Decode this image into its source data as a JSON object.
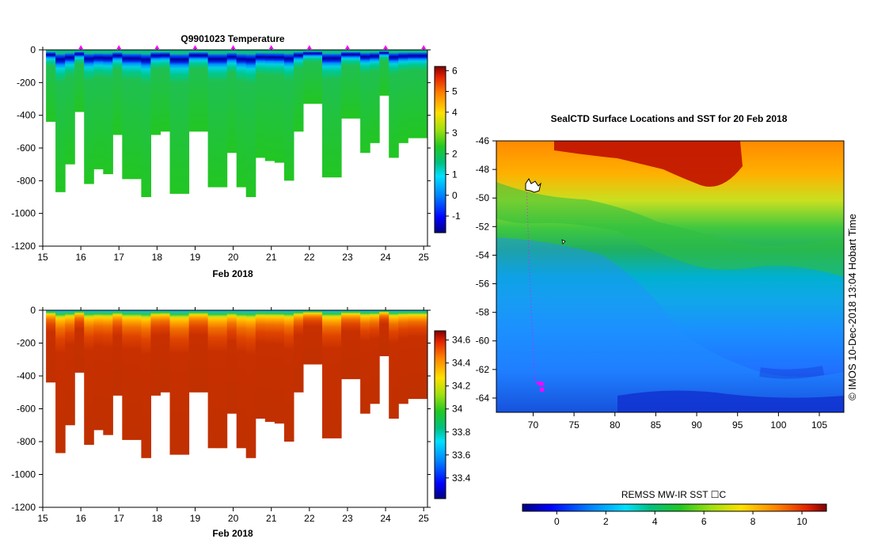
{
  "chart_data": [
    {
      "type": "heatmap",
      "title": "Q9901023  Temperature",
      "xlabel": "Feb 2018",
      "ylabel": "",
      "xlim": [
        15,
        25.1
      ],
      "ylim": [
        -1200,
        0
      ],
      "x_ticks": [
        "15",
        "16",
        "17",
        "18",
        "19",
        "20",
        "21",
        "22",
        "23",
        "24",
        "25"
      ],
      "y_ticks": [
        "0",
        "-200",
        "-400",
        "-600",
        "-800",
        "-1000",
        "-1200"
      ],
      "profile_dates": [
        15.2,
        15.45,
        15.7,
        15.95,
        16.2,
        16.45,
        16.7,
        16.95,
        17.2,
        17.45,
        17.7,
        17.95,
        18.2,
        18.45,
        18.7,
        18.95,
        19.2,
        19.45,
        19.7,
        19.95,
        20.2,
        20.45,
        20.7,
        20.95,
        21.2,
        21.45,
        21.7,
        21.95,
        22.2,
        22.45,
        22.7,
        22.95,
        23.2,
        23.45,
        23.7,
        23.95,
        24.2,
        24.45,
        24.7,
        24.95
      ],
      "profile_max_depth": [
        -440,
        -870,
        -700,
        -380,
        -820,
        -730,
        -760,
        -520,
        -790,
        -790,
        -900,
        -520,
        -500,
        -880,
        -880,
        -500,
        -500,
        -840,
        -840,
        -630,
        -840,
        -900,
        -660,
        -680,
        -690,
        -800,
        -500,
        -330,
        -330,
        -780,
        -780,
        -420,
        -420,
        -630,
        -570,
        -280,
        -660,
        -570,
        -540,
        -540
      ],
      "colorbar": {
        "ticks": [
          "-1",
          "0",
          "1",
          "2",
          "3",
          "4",
          "5",
          "6"
        ],
        "range": [
          -1.8,
          6.2
        ]
      },
      "surface_markers": "magenta triangles",
      "description_values": {
        "surface_temp": 2.5,
        "min_layer_temp": -1.5,
        "min_layer_depth": [
          -50,
          -120
        ],
        "deep_temp": 2.0
      }
    },
    {
      "type": "heatmap",
      "title": "",
      "xlabel": "Feb 2018",
      "ylabel": "",
      "xlim": [
        15,
        25.1
      ],
      "ylim": [
        -1200,
        0
      ],
      "x_ticks": [
        "15",
        "16",
        "17",
        "18",
        "19",
        "20",
        "21",
        "22",
        "23",
        "24",
        "25"
      ],
      "y_ticks": [
        "0",
        "-200",
        "-400",
        "-600",
        "-800",
        "-1000",
        "-1200"
      ],
      "colorbar": {
        "ticks": [
          "33.4",
          "33.6",
          "33.8",
          "34",
          "34.2",
          "34.4",
          "34.6"
        ],
        "range": [
          33.22,
          34.68
        ]
      },
      "description_values": {
        "surface_salinity": 33.8,
        "deep_salinity": 34.65
      }
    },
    {
      "type": "heatmap",
      "title": "SealCTD Surface Locations and SST for 20 Feb 2018",
      "xlabel": "",
      "ylabel": "",
      "xlim": [
        65.5,
        108
      ],
      "ylim": [
        -65,
        -46
      ],
      "x_ticks": [
        "70",
        "75",
        "80",
        "85",
        "90",
        "95",
        "100",
        "105"
      ],
      "y_ticks": [
        "-46",
        "-48",
        "-50",
        "-52",
        "-54",
        "-56",
        "-58",
        "-60",
        "-62",
        "-64"
      ],
      "colorbar": {
        "label": "REMSS MW-IR SST ☐C",
        "ticks": [
          "0",
          "2",
          "4",
          "6",
          "8",
          "10"
        ],
        "range": [
          -1.4,
          11.0
        ]
      },
      "side_text": "© IMOS 10-Dec-2018 13:04 Hobart Time",
      "track": {
        "start": [
          69.2,
          -49.2
        ],
        "end": [
          70.8,
          -63.3
        ]
      }
    }
  ]
}
